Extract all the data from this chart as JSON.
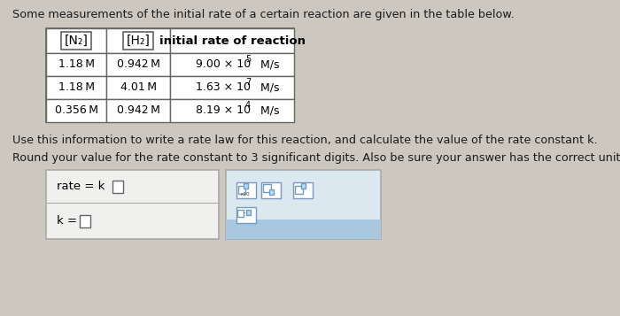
{
  "title": "Some measurements of the initial rate of a certain reaction are given in the table below.",
  "bg_color": "#ccc8c0",
  "table": {
    "col1_header": "[N₂]",
    "col2_header": "[H₂]",
    "col3_header": "initial rate of reaction",
    "rows": [
      [
        "1.18 M",
        "0.942 M",
        "9.00 × 10",
        "5",
        " M/s"
      ],
      [
        "1.18 M",
        "4.01 M",
        "1.63 × 10",
        "7",
        " M/s"
      ],
      [
        "0.356 M",
        "0.942 M",
        "8.19 × 10",
        "4",
        " M/s"
      ]
    ]
  },
  "instruction1": "Use this information to write a rate law for this reaction, and calculate the value of the rate constant k.",
  "instruction2": "Round your value for the rate constant to 3 significant digits. Also be sure your answer has the correct unit symbol",
  "text_color": "#1a1a1a",
  "table_bg": "#ffffff",
  "table_border": "#666666",
  "left_box_bg": "#f0f0ee",
  "left_box_border": "#aaaaaa",
  "right_box_bg": "#dce8f0",
  "right_box_border": "#aaaaaa",
  "btn_bg": "#ffffff",
  "btn_border": "#7799bb",
  "btn_fill_bg": "#aaddff"
}
